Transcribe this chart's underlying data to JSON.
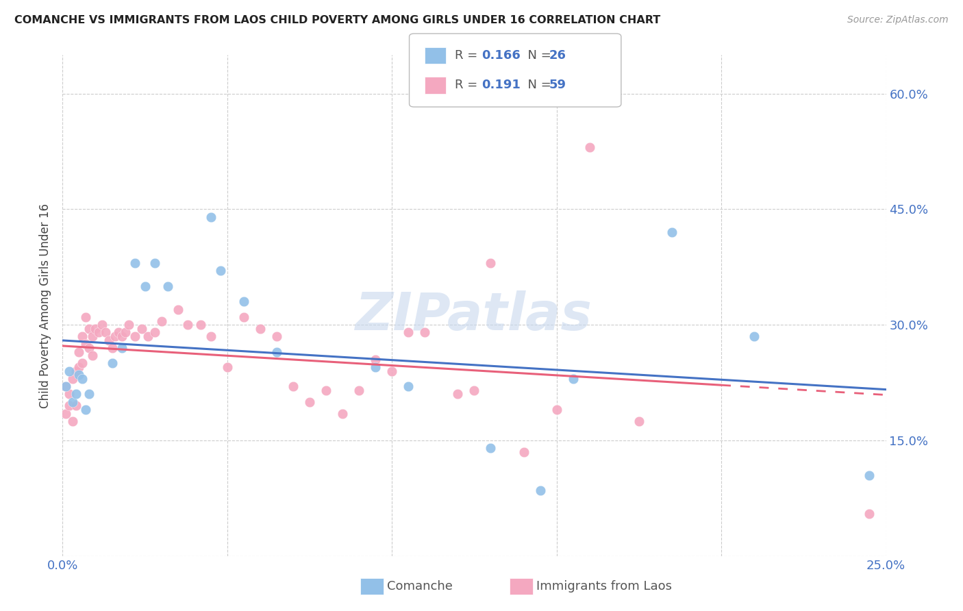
{
  "title": "COMANCHE VS IMMIGRANTS FROM LAOS CHILD POVERTY AMONG GIRLS UNDER 16 CORRELATION CHART",
  "source": "Source: ZipAtlas.com",
  "ylabel": "Child Poverty Among Girls Under 16",
  "xlim": [
    0.0,
    0.25
  ],
  "ylim": [
    0.0,
    0.65
  ],
  "xticks": [
    0.0,
    0.05,
    0.1,
    0.15,
    0.2,
    0.25
  ],
  "yticks": [
    0.0,
    0.15,
    0.3,
    0.45,
    0.6
  ],
  "blue_color": "#92C0E8",
  "pink_color": "#F4A8C0",
  "blue_line_color": "#4472C4",
  "pink_line_color": "#E8607A",
  "text_blue": "#4472C4",
  "watermark": "ZIPatlas",
  "legend_label1": "Comanche",
  "legend_label2": "Immigrants from Laos",
  "comanche_x": [
    0.001,
    0.002,
    0.003,
    0.004,
    0.005,
    0.006,
    0.007,
    0.008,
    0.015,
    0.018,
    0.022,
    0.025,
    0.028,
    0.032,
    0.045,
    0.048,
    0.055,
    0.065,
    0.095,
    0.105,
    0.13,
    0.145,
    0.155,
    0.185,
    0.21,
    0.245
  ],
  "comanche_y": [
    0.22,
    0.24,
    0.2,
    0.21,
    0.235,
    0.23,
    0.19,
    0.21,
    0.25,
    0.27,
    0.38,
    0.35,
    0.38,
    0.35,
    0.44,
    0.37,
    0.33,
    0.265,
    0.245,
    0.22,
    0.14,
    0.085,
    0.23,
    0.42,
    0.285,
    0.105
  ],
  "laos_x": [
    0.001,
    0.001,
    0.002,
    0.002,
    0.003,
    0.003,
    0.004,
    0.004,
    0.005,
    0.005,
    0.006,
    0.006,
    0.007,
    0.007,
    0.008,
    0.008,
    0.009,
    0.009,
    0.01,
    0.011,
    0.012,
    0.013,
    0.014,
    0.015,
    0.016,
    0.017,
    0.018,
    0.019,
    0.02,
    0.022,
    0.024,
    0.026,
    0.028,
    0.03,
    0.035,
    0.038,
    0.042,
    0.045,
    0.05,
    0.055,
    0.06,
    0.065,
    0.07,
    0.075,
    0.08,
    0.085,
    0.09,
    0.095,
    0.1,
    0.105,
    0.11,
    0.12,
    0.125,
    0.13,
    0.14,
    0.15,
    0.16,
    0.175,
    0.245
  ],
  "laos_y": [
    0.22,
    0.185,
    0.21,
    0.195,
    0.23,
    0.175,
    0.24,
    0.195,
    0.265,
    0.245,
    0.25,
    0.285,
    0.275,
    0.31,
    0.295,
    0.27,
    0.26,
    0.285,
    0.295,
    0.29,
    0.3,
    0.29,
    0.28,
    0.27,
    0.285,
    0.29,
    0.285,
    0.29,
    0.3,
    0.285,
    0.295,
    0.285,
    0.29,
    0.305,
    0.32,
    0.3,
    0.3,
    0.285,
    0.245,
    0.31,
    0.295,
    0.285,
    0.22,
    0.2,
    0.215,
    0.185,
    0.215,
    0.255,
    0.24,
    0.29,
    0.29,
    0.21,
    0.215,
    0.38,
    0.135,
    0.19,
    0.53,
    0.175,
    0.055
  ]
}
